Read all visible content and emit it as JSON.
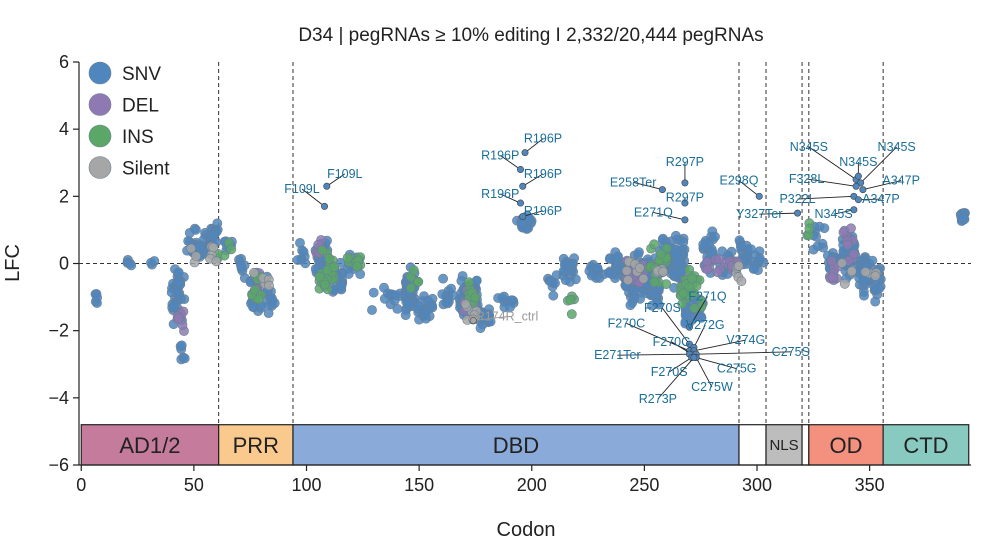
{
  "chart_data": {
    "type": "scatter",
    "title": "D34 | pegRNAs ≥ 10% editing I 2,332/20,444 pegRNAs",
    "xlabel": "Codon",
    "ylabel": "LFC",
    "xlim": [
      -1,
      395
    ],
    "ylim": [
      -6,
      6
    ],
    "xticks": [
      0,
      50,
      100,
      150,
      200,
      250,
      300,
      350
    ],
    "yticks": [
      -6,
      -4,
      -2,
      0,
      2,
      4,
      6
    ],
    "reference_line_y": 0,
    "boundary_lines_x": [
      61,
      94,
      292,
      304,
      320,
      323,
      356
    ],
    "legend": {
      "placement": "top-left",
      "entries": [
        {
          "label": "SNV",
          "color": "#4f86bd"
        },
        {
          "label": "DEL",
          "color": "#8e79b3"
        },
        {
          "label": "INS",
          "color": "#5aa767"
        },
        {
          "label": "Silent",
          "color": "#a6a6a6"
        }
      ]
    },
    "domains": [
      {
        "label": "AD1/2",
        "start": 0,
        "end": 61,
        "color": "#c47b9c"
      },
      {
        "label": "PRR",
        "start": 61,
        "end": 94,
        "color": "#f9c98d"
      },
      {
        "label": "DBD",
        "start": 94,
        "end": 292,
        "color": "#8aaad9"
      },
      {
        "label": "",
        "start": 292,
        "end": 304,
        "color": "#ffffff"
      },
      {
        "label": "NLS",
        "start": 304,
        "end": 320,
        "color": "#bdbdbd"
      },
      {
        "label": "",
        "start": 320,
        "end": 323,
        "color": "#ffffff"
      },
      {
        "label": "OD",
        "start": 323,
        "end": 356,
        "color": "#f3907e"
      },
      {
        "label": "CTD",
        "start": 356,
        "end": 394,
        "color": "#88c9c0"
      }
    ],
    "annotations": [
      {
        "label": "F109L",
        "x": 108,
        "y": 1.7,
        "text_x": 98,
        "text_y": 2.1
      },
      {
        "label": "F109L",
        "x": 109,
        "y": 2.3,
        "text_x": 117,
        "text_y": 2.55
      },
      {
        "label": "R196P",
        "x": 195,
        "y": 2.8,
        "text_x": 186,
        "text_y": 3.1
      },
      {
        "label": "R196P",
        "x": 197,
        "y": 3.3,
        "text_x": 205,
        "text_y": 3.6
      },
      {
        "label": "R196P",
        "x": 196,
        "y": 2.3,
        "text_x": 205,
        "text_y": 2.55
      },
      {
        "label": "R196P",
        "x": 195,
        "y": 1.8,
        "text_x": 186,
        "text_y": 1.95
      },
      {
        "label": "R196P",
        "x": 196,
        "y": 1.4,
        "text_x": 205,
        "text_y": 1.45
      },
      {
        "label": "R297P",
        "x": 268,
        "y": 2.4,
        "text_x": 268,
        "text_y": 2.9
      },
      {
        "label": "E258Ter",
        "x": 258,
        "y": 2.2,
        "text_x": 245,
        "text_y": 2.3
      },
      {
        "label": "R297P",
        "x": 268,
        "y": 1.8,
        "text_x": 268,
        "text_y": 1.85
      },
      {
        "label": "E271Q",
        "x": 268,
        "y": 1.3,
        "text_x": 254,
        "text_y": 1.4
      },
      {
        "label": "E298Q",
        "x": 301,
        "y": 2.0,
        "text_x": 292,
        "text_y": 2.35
      },
      {
        "label": "Y327Ter",
        "x": 318,
        "y": 1.5,
        "text_x": 301,
        "text_y": 1.35
      },
      {
        "label": "N345S",
        "x": 344,
        "y": 2.5,
        "text_x": 323,
        "text_y": 3.35
      },
      {
        "label": "N345S",
        "x": 345,
        "y": 2.6,
        "text_x": 345,
        "text_y": 2.9
      },
      {
        "label": "N345S",
        "x": 346,
        "y": 2.4,
        "text_x": 362,
        "text_y": 3.35
      },
      {
        "label": "F328L",
        "x": 344,
        "y": 2.3,
        "text_x": 322,
        "text_y": 2.4
      },
      {
        "label": "A347P",
        "x": 347,
        "y": 2.2,
        "text_x": 364,
        "text_y": 2.35
      },
      {
        "label": "P322L",
        "x": 343,
        "y": 2.0,
        "text_x": 318,
        "text_y": 1.8
      },
      {
        "label": "A347P",
        "x": 345,
        "y": 1.9,
        "text_x": 355,
        "text_y": 1.8
      },
      {
        "label": "N345S",
        "x": 343,
        "y": 1.6,
        "text_x": 334,
        "text_y": 1.35
      },
      {
        "label": "R174R_ctrl",
        "x": 174,
        "y": -1.7,
        "text_x": 189,
        "text_y": -1.7,
        "style": "control"
      },
      {
        "label": "F271Q",
        "x": 270,
        "y": -1.9,
        "text_x": 278,
        "text_y": -1.1
      },
      {
        "label": "F270S",
        "x": 270,
        "y": -2.4,
        "text_x": 258,
        "text_y": -1.45
      },
      {
        "label": "V272G",
        "x": 272,
        "y": -2.5,
        "text_x": 277,
        "text_y": -1.95
      },
      {
        "label": "F270C",
        "x": 270,
        "y": -2.6,
        "text_x": 242,
        "text_y": -1.9
      },
      {
        "label": "V274G",
        "x": 272,
        "y": -2.6,
        "text_x": 295,
        "text_y": -2.4
      },
      {
        "label": "F270C",
        "x": 271,
        "y": -2.7,
        "text_x": 262,
        "text_y": -2.45
      },
      {
        "label": "C275S",
        "x": 273,
        "y": -2.7,
        "text_x": 315,
        "text_y": -2.75
      },
      {
        "label": "E271Ter",
        "x": 270,
        "y": -2.7,
        "text_x": 238,
        "text_y": -2.85
      },
      {
        "label": "C275G",
        "x": 273,
        "y": -2.8,
        "text_x": 291,
        "text_y": -3.25
      },
      {
        "label": "F270S",
        "x": 271,
        "y": -2.8,
        "text_x": 261,
        "text_y": -3.35
      },
      {
        "label": "C275W",
        "x": 273,
        "y": -2.8,
        "text_x": 280,
        "text_y": -3.8
      },
      {
        "label": "R273P",
        "x": 272,
        "y": -2.8,
        "text_x": 256,
        "text_y": -4.15
      }
    ],
    "series": [
      {
        "name": "SNV",
        "clusters": [
          {
            "x": [
              5,
              8
            ],
            "center": -0.9,
            "spread": 0.6,
            "n": 5
          },
          {
            "x": [
              20,
              24
            ],
            "center": 0.0,
            "spread": 0.35,
            "n": 5
          },
          {
            "x": [
              30,
              34
            ],
            "center": 0.0,
            "spread": 0.35,
            "n": 3
          },
          {
            "x": [
              40,
              46
            ],
            "center": -0.9,
            "spread": 1.0,
            "n": 35
          },
          {
            "x": [
              44,
              46
            ],
            "center": -2.6,
            "spread": 0.6,
            "n": 6
          },
          {
            "x": [
              47,
              56
            ],
            "center": 0.6,
            "spread": 0.6,
            "n": 30
          },
          {
            "x": [
              57,
              61
            ],
            "center": 0.9,
            "spread": 0.6,
            "n": 20
          },
          {
            "x": [
              63,
              67
            ],
            "center": 0.5,
            "spread": 0.5,
            "n": 6
          },
          {
            "x": [
              70,
              74
            ],
            "center": 0.0,
            "spread": 0.5,
            "n": 8
          },
          {
            "x": [
              75,
              80
            ],
            "center": -0.8,
            "spread": 0.9,
            "n": 30
          },
          {
            "x": [
              82,
              86
            ],
            "center": -0.9,
            "spread": 0.8,
            "n": 12
          },
          {
            "x": [
              96,
              100
            ],
            "center": 0.2,
            "spread": 0.6,
            "n": 8
          },
          {
            "x": [
              104,
              110
            ],
            "center": 0.1,
            "spread": 0.9,
            "n": 45
          },
          {
            "x": [
              111,
              116
            ],
            "center": -0.5,
            "spread": 0.7,
            "n": 22
          },
          {
            "x": [
              118,
              124
            ],
            "center": 0.0,
            "spread": 0.5,
            "n": 14
          },
          {
            "x": [
              128,
              142
            ],
            "center": -1.0,
            "spread": 0.5,
            "n": 14
          },
          {
            "x": [
              144,
              148
            ],
            "center": -0.8,
            "spread": 0.9,
            "n": 45
          },
          {
            "x": [
              149,
              156
            ],
            "center": -1.3,
            "spread": 0.7,
            "n": 20
          },
          {
            "x": [
              160,
              165
            ],
            "center": -0.9,
            "spread": 0.6,
            "n": 12
          },
          {
            "x": [
              168,
              176
            ],
            "center": -1.0,
            "spread": 0.8,
            "n": 80
          },
          {
            "x": [
              177,
              182
            ],
            "center": -1.6,
            "spread": 0.4,
            "n": 20
          },
          {
            "x": [
              185,
              192
            ],
            "center": -1.0,
            "spread": 0.5,
            "n": 10
          },
          {
            "x": [
              193,
              200
            ],
            "center": 1.2,
            "spread": 0.4,
            "n": 22
          },
          {
            "x": [
              207,
              212
            ],
            "center": -0.6,
            "spread": 0.5,
            "n": 8
          },
          {
            "x": [
              214,
              220
            ],
            "center": -0.2,
            "spread": 0.6,
            "n": 22
          },
          {
            "x": [
              225,
              232
            ],
            "center": -0.3,
            "spread": 0.5,
            "n": 14
          },
          {
            "x": [
              234,
              240
            ],
            "center": -0.1,
            "spread": 0.7,
            "n": 22
          },
          {
            "x": [
              241,
              250
            ],
            "center": -0.4,
            "spread": 1.0,
            "n": 80
          },
          {
            "x": [
              251,
              257
            ],
            "center": -0.5,
            "spread": 1.0,
            "n": 70
          },
          {
            "x": [
              258,
              262
            ],
            "center": 0.3,
            "spread": 0.9,
            "n": 25
          },
          {
            "x": [
              263,
              268
            ],
            "center": 0.0,
            "spread": 1.1,
            "n": 50
          },
          {
            "x": [
              268,
              276
            ],
            "center": -1.4,
            "spread": 0.8,
            "n": 50
          },
          {
            "x": [
              276,
              282
            ],
            "center": 0.4,
            "spread": 0.8,
            "n": 25
          },
          {
            "x": [
              283,
              290
            ],
            "center": 0.0,
            "spread": 0.5,
            "n": 15
          },
          {
            "x": [
              292,
              296
            ],
            "center": 0.3,
            "spread": 0.8,
            "n": 18
          },
          {
            "x": [
              297,
              303
            ],
            "center": 0.0,
            "spread": 0.6,
            "n": 12
          },
          {
            "x": [
              325,
              330
            ],
            "center": 0.8,
            "spread": 0.6,
            "n": 10
          },
          {
            "x": [
              331,
              337
            ],
            "center": 0.0,
            "spread": 0.6,
            "n": 12
          },
          {
            "x": [
              338,
              344
            ],
            "center": 0.3,
            "spread": 0.9,
            "n": 35
          },
          {
            "x": [
              345,
              350
            ],
            "center": -0.3,
            "spread": 0.9,
            "n": 35
          },
          {
            "x": [
              351,
              356
            ],
            "center": -0.5,
            "spread": 0.8,
            "n": 18
          },
          {
            "x": [
              390,
              393
            ],
            "center": 1.4,
            "spread": 0.2,
            "n": 10
          }
        ]
      },
      {
        "name": "DEL",
        "clusters": [
          {
            "x": [
              42,
              46
            ],
            "center": -1.5,
            "spread": 0.9,
            "n": 8
          },
          {
            "x": [
              76,
              80
            ],
            "center": -0.6,
            "spread": 0.6,
            "n": 8
          },
          {
            "x": [
              104,
              108
            ],
            "center": 0.4,
            "spread": 0.5,
            "n": 8
          },
          {
            "x": [
              170,
              175
            ],
            "center": -1.0,
            "spread": 0.7,
            "n": 10
          },
          {
            "x": [
              242,
              250
            ],
            "center": -0.3,
            "spread": 0.6,
            "n": 18
          },
          {
            "x": [
              276,
              286
            ],
            "center": 0.0,
            "spread": 0.5,
            "n": 10
          },
          {
            "x": [
              288,
              292
            ],
            "center": -0.1,
            "spread": 0.4,
            "n": 8
          },
          {
            "x": [
              332,
              336
            ],
            "center": -0.3,
            "spread": 0.7,
            "n": 12
          },
          {
            "x": [
              338,
              344
            ],
            "center": 0.6,
            "spread": 0.7,
            "n": 10
          }
        ]
      },
      {
        "name": "INS",
        "clusters": [
          {
            "x": [
              60,
              67
            ],
            "center": 0.5,
            "spread": 0.6,
            "n": 5
          },
          {
            "x": [
              75,
              80
            ],
            "center": -0.8,
            "spread": 0.7,
            "n": 12
          },
          {
            "x": [
              105,
              113
            ],
            "center": -0.3,
            "spread": 0.8,
            "n": 25
          },
          {
            "x": [
              118,
              124
            ],
            "center": 0.0,
            "spread": 0.5,
            "n": 10
          },
          {
            "x": [
              146,
              150
            ],
            "center": -0.4,
            "spread": 0.6,
            "n": 6
          },
          {
            "x": [
              170,
              176
            ],
            "center": -0.8,
            "spread": 0.6,
            "n": 8
          },
          {
            "x": [
              214,
              220
            ],
            "center": -1.0,
            "spread": 0.6,
            "n": 5
          },
          {
            "x": [
              252,
              260
            ],
            "center": 0.0,
            "spread": 0.8,
            "n": 25
          },
          {
            "x": [
              266,
              276
            ],
            "center": -0.8,
            "spread": 0.9,
            "n": 25
          },
          {
            "x": [
              322,
              326
            ],
            "center": 1.0,
            "spread": 0.4,
            "n": 4
          }
        ]
      },
      {
        "name": "Silent",
        "clusters": [
          {
            "x": [
              48,
              60
            ],
            "center": 0.3,
            "spread": 0.5,
            "n": 8
          },
          {
            "x": [
              76,
              84
            ],
            "center": -0.5,
            "spread": 0.5,
            "n": 6
          },
          {
            "x": [
              170,
              176
            ],
            "center": -1.5,
            "spread": 0.5,
            "n": 8
          },
          {
            "x": [
              240,
              262
            ],
            "center": -0.2,
            "spread": 0.5,
            "n": 12
          },
          {
            "x": [
              290,
              300
            ],
            "center": -0.2,
            "spread": 0.5,
            "n": 6
          },
          {
            "x": [
              336,
              356
            ],
            "center": -0.2,
            "spread": 0.6,
            "n": 8
          }
        ]
      }
    ]
  }
}
